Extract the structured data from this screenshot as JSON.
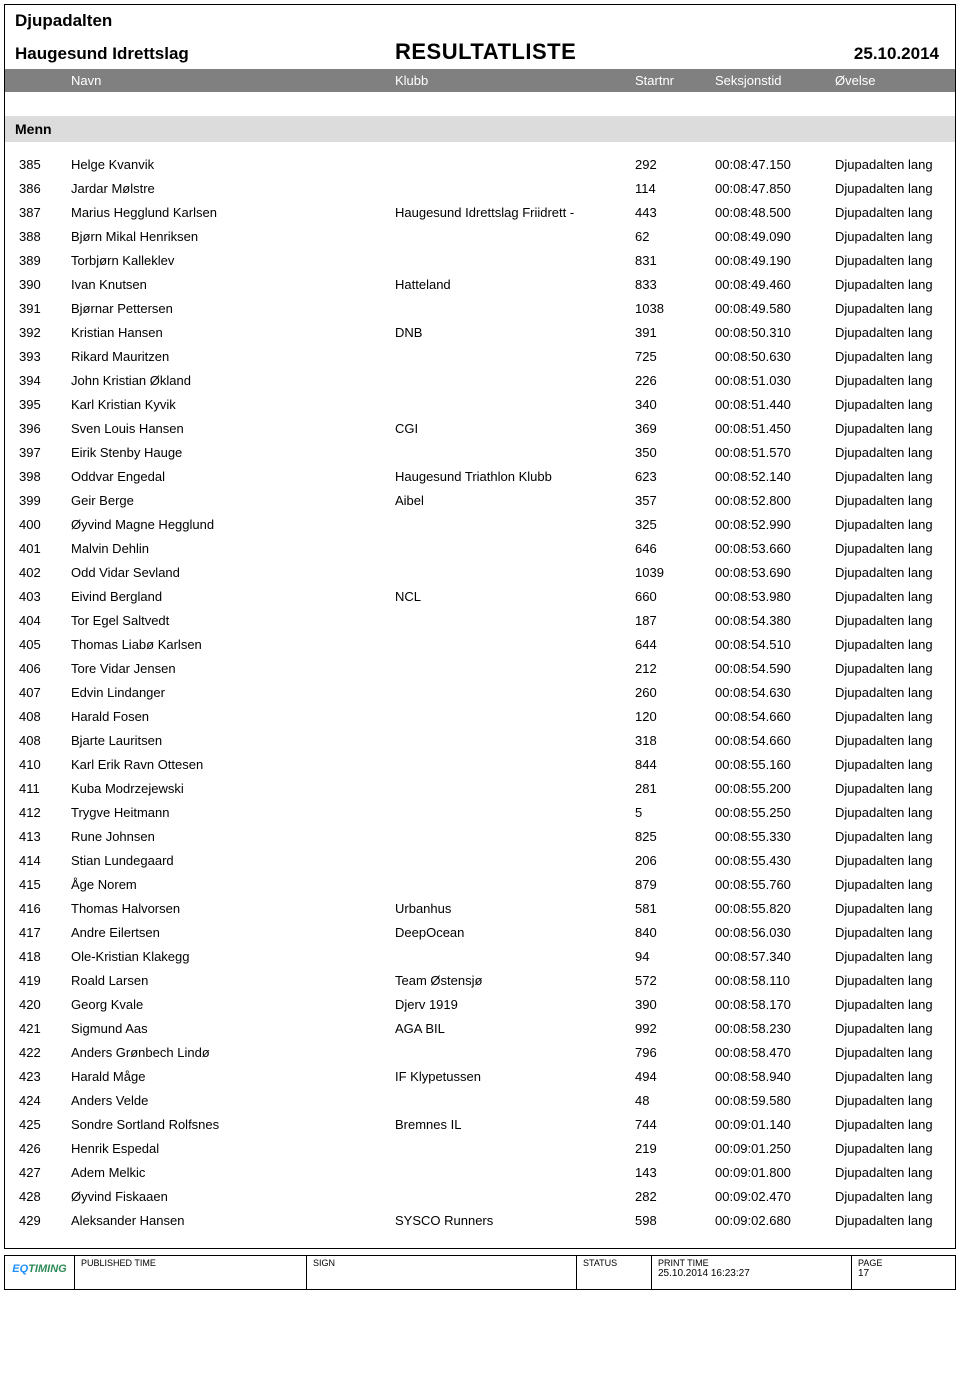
{
  "header": {
    "event_name": "Djupadalten",
    "organization": "Haugesund Idrettslag",
    "title": "RESULTATLISTE",
    "date": "25.10.2014"
  },
  "columns": {
    "name": "Navn",
    "club": "Klubb",
    "startnr": "Startnr",
    "time": "Seksjonstid",
    "event": "Øvelse"
  },
  "section": "Menn",
  "rows": [
    {
      "rank": "385",
      "name": "Helge Kvanvik",
      "club": "",
      "start": "292",
      "time": "00:08:47.150",
      "event": "Djupadalten lang"
    },
    {
      "rank": "386",
      "name": "Jardar Mølstre",
      "club": "",
      "start": "114",
      "time": "00:08:47.850",
      "event": "Djupadalten lang"
    },
    {
      "rank": "387",
      "name": "Marius Hegglund Karlsen",
      "club": "Haugesund Idrettslag Friidrett -",
      "start": "443",
      "time": "00:08:48.500",
      "event": "Djupadalten lang"
    },
    {
      "rank": "388",
      "name": "Bjørn Mikal Henriksen",
      "club": "",
      "start": "62",
      "time": "00:08:49.090",
      "event": "Djupadalten lang"
    },
    {
      "rank": "389",
      "name": "Torbjørn Kalleklev",
      "club": "",
      "start": "831",
      "time": "00:08:49.190",
      "event": "Djupadalten lang"
    },
    {
      "rank": "390",
      "name": "Ivan Knutsen",
      "club": "Hatteland",
      "start": "833",
      "time": "00:08:49.460",
      "event": "Djupadalten lang"
    },
    {
      "rank": "391",
      "name": "Bjørnar Pettersen",
      "club": "",
      "start": "1038",
      "time": "00:08:49.580",
      "event": "Djupadalten lang"
    },
    {
      "rank": "392",
      "name": "Kristian Hansen",
      "club": "DNB",
      "start": "391",
      "time": "00:08:50.310",
      "event": "Djupadalten lang"
    },
    {
      "rank": "393",
      "name": "Rikard Mauritzen",
      "club": "",
      "start": "725",
      "time": "00:08:50.630",
      "event": "Djupadalten lang"
    },
    {
      "rank": "394",
      "name": "John Kristian Økland",
      "club": "",
      "start": "226",
      "time": "00:08:51.030",
      "event": "Djupadalten lang"
    },
    {
      "rank": "395",
      "name": "Karl Kristian Kyvik",
      "club": "",
      "start": "340",
      "time": "00:08:51.440",
      "event": "Djupadalten lang"
    },
    {
      "rank": "396",
      "name": "Sven Louis Hansen",
      "club": "CGI",
      "start": "369",
      "time": "00:08:51.450",
      "event": "Djupadalten lang"
    },
    {
      "rank": "397",
      "name": "Eirik Stenby Hauge",
      "club": "",
      "start": "350",
      "time": "00:08:51.570",
      "event": "Djupadalten lang"
    },
    {
      "rank": "398",
      "name": "Oddvar Engedal",
      "club": "Haugesund Triathlon Klubb",
      "start": "623",
      "time": "00:08:52.140",
      "event": "Djupadalten lang"
    },
    {
      "rank": "399",
      "name": "Geir Berge",
      "club": "Aibel",
      "start": "357",
      "time": "00:08:52.800",
      "event": "Djupadalten lang"
    },
    {
      "rank": "400",
      "name": "Øyvind Magne Hegglund",
      "club": "",
      "start": "325",
      "time": "00:08:52.990",
      "event": "Djupadalten lang"
    },
    {
      "rank": "401",
      "name": "Malvin Dehlin",
      "club": "",
      "start": "646",
      "time": "00:08:53.660",
      "event": "Djupadalten lang"
    },
    {
      "rank": "402",
      "name": "Odd Vidar Sevland",
      "club": "",
      "start": "1039",
      "time": "00:08:53.690",
      "event": "Djupadalten lang"
    },
    {
      "rank": "403",
      "name": "Eivind Bergland",
      "club": "NCL",
      "start": "660",
      "time": "00:08:53.980",
      "event": "Djupadalten lang"
    },
    {
      "rank": "404",
      "name": "Tor Egel Saltvedt",
      "club": "",
      "start": "187",
      "time": "00:08:54.380",
      "event": "Djupadalten lang"
    },
    {
      "rank": "405",
      "name": "Thomas Liabø Karlsen",
      "club": "",
      "start": "644",
      "time": "00:08:54.510",
      "event": "Djupadalten lang"
    },
    {
      "rank": "406",
      "name": "Tore Vidar  Jensen",
      "club": "",
      "start": "212",
      "time": "00:08:54.590",
      "event": "Djupadalten lang"
    },
    {
      "rank": "407",
      "name": "Edvin Lindanger",
      "club": "",
      "start": "260",
      "time": "00:08:54.630",
      "event": "Djupadalten lang"
    },
    {
      "rank": "408",
      "name": "Harald Fosen",
      "club": "",
      "start": "120",
      "time": "00:08:54.660",
      "event": "Djupadalten lang"
    },
    {
      "rank": "408",
      "name": "Bjarte Lauritsen",
      "club": "",
      "start": "318",
      "time": "00:08:54.660",
      "event": "Djupadalten lang"
    },
    {
      "rank": "410",
      "name": "Karl Erik Ravn Ottesen",
      "club": "",
      "start": "844",
      "time": "00:08:55.160",
      "event": "Djupadalten lang"
    },
    {
      "rank": "411",
      "name": "Kuba Modrzejewski",
      "club": "",
      "start": "281",
      "time": "00:08:55.200",
      "event": "Djupadalten lang"
    },
    {
      "rank": "412",
      "name": "Trygve Heitmann",
      "club": "",
      "start": "5",
      "time": "00:08:55.250",
      "event": "Djupadalten lang"
    },
    {
      "rank": "413",
      "name": "Rune Johnsen",
      "club": "",
      "start": "825",
      "time": "00:08:55.330",
      "event": "Djupadalten lang"
    },
    {
      "rank": "414",
      "name": "Stian Lundegaard",
      "club": "",
      "start": "206",
      "time": "00:08:55.430",
      "event": "Djupadalten lang"
    },
    {
      "rank": "415",
      "name": "Åge Norem",
      "club": "",
      "start": "879",
      "time": "00:08:55.760",
      "event": "Djupadalten lang"
    },
    {
      "rank": "416",
      "name": "Thomas Halvorsen",
      "club": "Urbanhus",
      "start": "581",
      "time": "00:08:55.820",
      "event": "Djupadalten lang"
    },
    {
      "rank": "417",
      "name": "Andre Eilertsen",
      "club": "DeepOcean",
      "start": "840",
      "time": "00:08:56.030",
      "event": "Djupadalten lang"
    },
    {
      "rank": "418",
      "name": "Ole-Kristian Klakegg",
      "club": "",
      "start": "94",
      "time": "00:08:57.340",
      "event": "Djupadalten lang"
    },
    {
      "rank": "419",
      "name": "Roald Larsen",
      "club": "Team Østensjø",
      "start": "572",
      "time": "00:08:58.110",
      "event": "Djupadalten lang"
    },
    {
      "rank": "420",
      "name": "Georg Kvale",
      "club": "Djerv 1919",
      "start": "390",
      "time": "00:08:58.170",
      "event": "Djupadalten lang"
    },
    {
      "rank": "421",
      "name": "Sigmund Aas",
      "club": "AGA BIL",
      "start": "992",
      "time": "00:08:58.230",
      "event": "Djupadalten lang"
    },
    {
      "rank": "422",
      "name": "Anders Grønbech Lindø",
      "club": "",
      "start": "796",
      "time": "00:08:58.470",
      "event": "Djupadalten lang"
    },
    {
      "rank": "423",
      "name": "Harald Måge",
      "club": "IF Klypetussen",
      "start": "494",
      "time": "00:08:58.940",
      "event": "Djupadalten lang"
    },
    {
      "rank": "424",
      "name": "Anders Velde",
      "club": "",
      "start": "48",
      "time": "00:08:59.580",
      "event": "Djupadalten lang"
    },
    {
      "rank": "425",
      "name": "Sondre Sortland Rolfsnes",
      "club": "Bremnes IL",
      "start": "744",
      "time": "00:09:01.140",
      "event": "Djupadalten lang"
    },
    {
      "rank": "426",
      "name": "Henrik Espedal",
      "club": "",
      "start": "219",
      "time": "00:09:01.250",
      "event": "Djupadalten lang"
    },
    {
      "rank": "427",
      "name": "Adem Melkic",
      "club": "",
      "start": "143",
      "time": "00:09:01.800",
      "event": "Djupadalten lang"
    },
    {
      "rank": "428",
      "name": "Øyvind Fiskaaen",
      "club": "",
      "start": "282",
      "time": "00:09:02.470",
      "event": "Djupadalten lang"
    },
    {
      "rank": "429",
      "name": "Aleksander Hansen",
      "club": "SYSCO Runners",
      "start": "598",
      "time": "00:09:02.680",
      "event": "Djupadalten lang"
    }
  ],
  "footer": {
    "logo_eq": "EQ",
    "logo_timing": "TIMING",
    "published_label": "PUBLISHED TIME",
    "sign_label": "SIGN",
    "status_label": "STATUS",
    "print_label": "PRINT TIME",
    "print_value": "25.10.2014 16:23:27",
    "page_label": "PAGE",
    "page_value": "17"
  }
}
